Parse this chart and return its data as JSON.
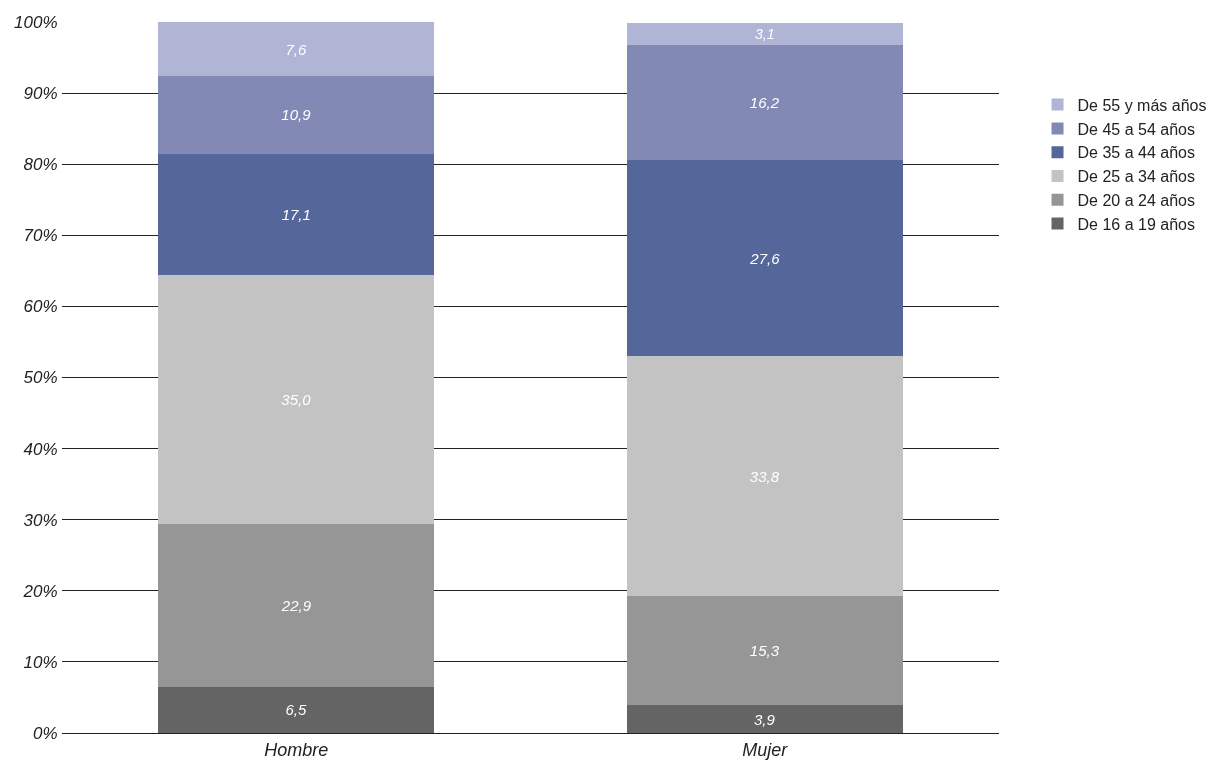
{
  "chart_data": {
    "type": "bar",
    "stacked": true,
    "categories": [
      "Hombre",
      "Mujer"
    ],
    "series": [
      {
        "name": "De 16 a 19 años",
        "color": "#646464",
        "values": [
          6.5,
          3.9
        ],
        "value_labels": [
          "6,5",
          "3,9"
        ]
      },
      {
        "name": "De 20 a 24 años",
        "color": "#969696",
        "values": [
          22.9,
          15.3
        ],
        "value_labels": [
          "22,9",
          "15,3"
        ]
      },
      {
        "name": "De 25 a 34 años",
        "color": "#c3c3c3",
        "values": [
          35.0,
          33.8
        ],
        "value_labels": [
          "35,0",
          "33,8"
        ]
      },
      {
        "name": "De 35 a 44 años",
        "color": "#55679a",
        "values": [
          17.1,
          27.6
        ],
        "value_labels": [
          "17,1",
          "27,6"
        ]
      },
      {
        "name": "De 45 a 54 años",
        "color": "#8389b5",
        "values": [
          10.9,
          16.2
        ],
        "value_labels": [
          "10,9",
          "16,2"
        ]
      },
      {
        "name": "De 55 y más años",
        "color": "#b0b4d5",
        "values": [
          7.6,
          3.1
        ],
        "value_labels": [
          "7,6",
          "3,1"
        ]
      }
    ],
    "ylim": [
      0,
      100
    ],
    "yticks": [
      {
        "value": 0,
        "label": "0%"
      },
      {
        "value": 10,
        "label": "10%"
      },
      {
        "value": 20,
        "label": "20%"
      },
      {
        "value": 30,
        "label": "30%"
      },
      {
        "value": 40,
        "label": "40%"
      },
      {
        "value": 50,
        "label": "50%"
      },
      {
        "value": 60,
        "label": "60%"
      },
      {
        "value": 70,
        "label": "70%"
      },
      {
        "value": 80,
        "label": "80%"
      },
      {
        "value": 90,
        "label": "90%"
      },
      {
        "value": 100,
        "label": "100%"
      }
    ],
    "grid": "y",
    "legend": "right"
  }
}
